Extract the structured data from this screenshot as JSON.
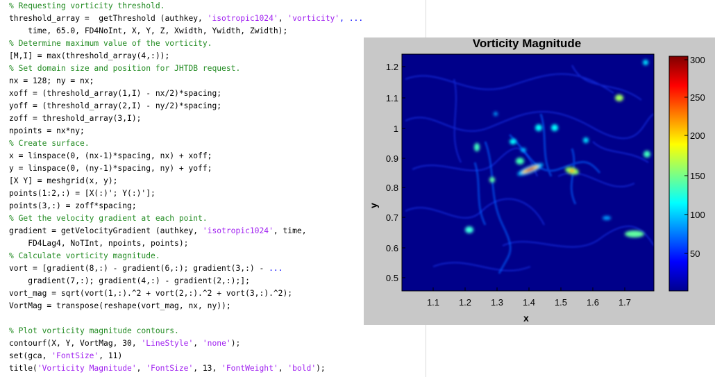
{
  "editor": {
    "lines": [
      [
        {
          "t": "% Requesting vorticity threshold.",
          "k": "comment"
        }
      ],
      [
        {
          "t": "threshold_array =  getThreshold (authkey, ",
          "k": "plain"
        },
        {
          "t": "'isotropic1024'",
          "k": "string"
        },
        {
          "t": ", ",
          "k": "plain"
        },
        {
          "t": "'vorticity'",
          "k": "string"
        },
        {
          "t": ", ...",
          "k": "cont"
        }
      ],
      [
        {
          "t": "    time, 65.0, FD4NoInt, X, Y, Z, Xwidth, Ywidth, Zwidth);",
          "k": "plain"
        }
      ],
      [
        {
          "t": "% Determine maximum value of the vorticity.",
          "k": "comment"
        }
      ],
      [
        {
          "t": "[M,I] = max(threshold_array(4,:));",
          "k": "plain"
        }
      ],
      [
        {
          "t": "% Set domain size and position for JHTDB request.",
          "k": "comment"
        }
      ],
      [
        {
          "t": "nx = 128; ny = nx;",
          "k": "plain"
        }
      ],
      [
        {
          "t": "xoff = (threshold_array(1,I) - nx/2)*spacing;",
          "k": "plain"
        }
      ],
      [
        {
          "t": "yoff = (threshold_array(2,I) - ny/2)*spacing;",
          "k": "plain"
        }
      ],
      [
        {
          "t": "zoff = threshold_array(3,I);",
          "k": "plain"
        }
      ],
      [
        {
          "t": "npoints = nx*ny;",
          "k": "plain"
        }
      ],
      [
        {
          "t": "% Create surface.",
          "k": "comment"
        }
      ],
      [
        {
          "t": "x = linspace(0, (nx-1)*spacing, nx) + xoff;",
          "k": "plain"
        }
      ],
      [
        {
          "t": "y = linspace(0, (ny-1)*spacing, ny) + yoff;",
          "k": "plain"
        }
      ],
      [
        {
          "t": "[X Y] = meshgrid(x, y);",
          "k": "plain"
        }
      ],
      [
        {
          "t": "points(1:2,:) = [X(:)'; Y(:)'];",
          "k": "plain"
        }
      ],
      [
        {
          "t": "points(3,:) = zoff*spacing;",
          "k": "plain"
        }
      ],
      [
        {
          "t": "% Get the velocity gradient at each point.",
          "k": "comment"
        }
      ],
      [
        {
          "t": "gradient = getVelocityGradient (authkey, ",
          "k": "plain"
        },
        {
          "t": "'isotropic1024'",
          "k": "string"
        },
        {
          "t": ", time,",
          "k": "plain"
        }
      ],
      [
        {
          "t": "    FD4Lag4, NoTInt, npoints, points);",
          "k": "plain"
        }
      ],
      [
        {
          "t": "% Calculate vorticity magnitude.",
          "k": "comment"
        }
      ],
      [
        {
          "t": "vort = [gradient(8,:) - gradient(6,:); gradient(3,:) - ",
          "k": "plain"
        },
        {
          "t": "...",
          "k": "cont"
        }
      ],
      [
        {
          "t": "    gradient(7,:); gradient(4,:) - gradient(2,:);];",
          "k": "plain"
        }
      ],
      [
        {
          "t": "vort_mag = sqrt(vort(1,:).^2 + vort(2,:).^2 + vort(3,:).^2);",
          "k": "plain"
        }
      ],
      [
        {
          "t": "VortMag = transpose(reshape(vort_mag, nx, ny));",
          "k": "plain"
        }
      ],
      [
        {
          "t": "",
          "k": "plain"
        }
      ],
      [
        {
          "t": "% Plot vorticity magnitude contours.",
          "k": "comment"
        }
      ],
      [
        {
          "t": "contourf(X, Y, VortMag, 30, ",
          "k": "plain"
        },
        {
          "t": "'LineStyle'",
          "k": "string"
        },
        {
          "t": ", ",
          "k": "plain"
        },
        {
          "t": "'none'",
          "k": "string"
        },
        {
          "t": ");",
          "k": "plain"
        }
      ],
      [
        {
          "t": "set(gca, ",
          "k": "plain"
        },
        {
          "t": "'FontSize'",
          "k": "string"
        },
        {
          "t": ", 11)",
          "k": "plain"
        }
      ],
      [
        {
          "t": "title(",
          "k": "plain"
        },
        {
          "t": "'Vorticity Magnitude'",
          "k": "string"
        },
        {
          "t": ", ",
          "k": "plain"
        },
        {
          "t": "'FontSize'",
          "k": "string"
        },
        {
          "t": ", 13, ",
          "k": "plain"
        },
        {
          "t": "'FontWeight'",
          "k": "string"
        },
        {
          "t": ", ",
          "k": "plain"
        },
        {
          "t": "'bold'",
          "k": "string"
        },
        {
          "t": ");",
          "k": "plain"
        }
      ]
    ]
  },
  "figure": {
    "title": "Vorticity Magnitude",
    "xlabel": "x",
    "ylabel": "y",
    "xticks": [
      "1.1",
      "1.2",
      "1.3",
      "1.4",
      "1.5",
      "1.6",
      "1.7"
    ],
    "yticks": [
      "1.2",
      "1.1",
      "1",
      "0.9",
      "0.8",
      "0.7",
      "0.6",
      "0.5"
    ],
    "colorbar_ticks": [
      "300",
      "250",
      "200",
      "150",
      "100",
      "50"
    ],
    "colormap": [
      "#00008f",
      "#0000ff",
      "#0080ff",
      "#00ffff",
      "#80ff80",
      "#ffff00",
      "#ff8000",
      "#ff0000",
      "#800000"
    ],
    "plot_background": "#00008a"
  }
}
